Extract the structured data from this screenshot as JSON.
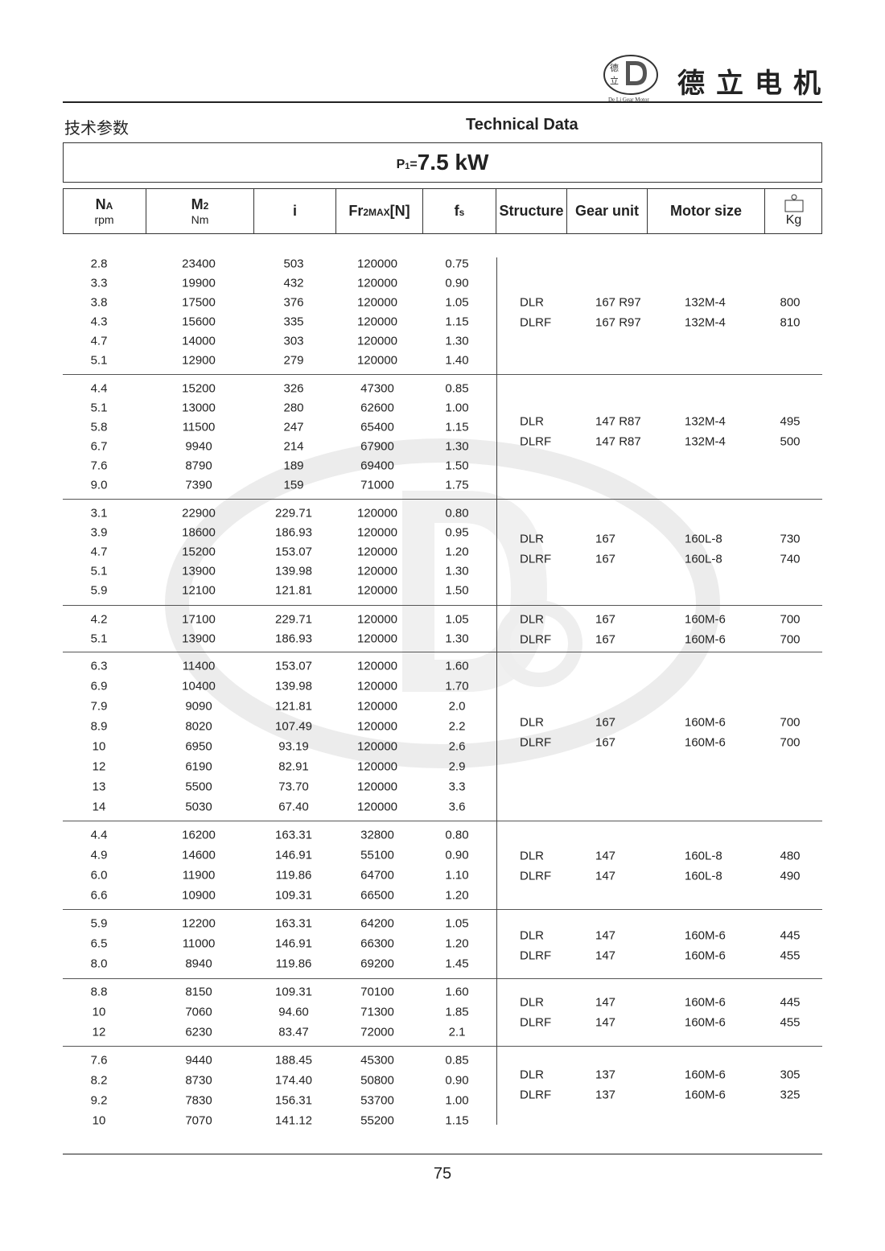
{
  "header": {
    "brand_cn": "德立电机",
    "logo_text": "De Li Gear Motor",
    "logo_chars": "德立"
  },
  "section": {
    "title_cn": "技术参数",
    "title_en": "Technical Data"
  },
  "power": {
    "label": "P",
    "sub": "1",
    "eq": "=",
    "value": "7.5 kW"
  },
  "columns": {
    "na": {
      "main": "N",
      "sub": "A",
      "unit": "rpm"
    },
    "m2": {
      "main": "M",
      "sub": "2",
      "unit": "Nm"
    },
    "i": "i",
    "fr": {
      "main": "Fr",
      "sub": "2MAX",
      "tail": "[N]"
    },
    "fs": {
      "main": "f",
      "sub": "s"
    },
    "structure": "Structure",
    "gear_unit": "Gear unit",
    "motor_size": "Motor size",
    "kg": "Kg"
  },
  "groups": [
    {
      "rows": [
        [
          "2.8",
          "23400",
          "503",
          "120000",
          "0.75"
        ],
        [
          "3.3",
          "19900",
          "432",
          "120000",
          "0.90"
        ],
        [
          "3.8",
          "17500",
          "376",
          "120000",
          "1.05"
        ],
        [
          "4.3",
          "15600",
          "335",
          "120000",
          "1.15"
        ],
        [
          "4.7",
          "14000",
          "303",
          "120000",
          "1.30"
        ],
        [
          "5.1",
          "12900",
          "279",
          "120000",
          "1.40"
        ]
      ],
      "variants": [
        [
          "DLR",
          "167 R97",
          "132M-4",
          "800"
        ],
        [
          "DLRF",
          "167 R97",
          "132M-4",
          "810"
        ]
      ]
    },
    {
      "rows": [
        [
          "4.4",
          "15200",
          "326",
          "47300",
          "0.85"
        ],
        [
          "5.1",
          "13000",
          "280",
          "62600",
          "1.00"
        ],
        [
          "5.8",
          "11500",
          "247",
          "65400",
          "1.15"
        ],
        [
          "6.7",
          "9940",
          "214",
          "67900",
          "1.30"
        ],
        [
          "7.6",
          "8790",
          "189",
          "69400",
          "1.50"
        ],
        [
          "9.0",
          "7390",
          "159",
          "71000",
          "1.75"
        ]
      ],
      "variants": [
        [
          "DLR",
          "147 R87",
          "132M-4",
          "495"
        ],
        [
          "DLRF",
          "147 R87",
          "132M-4",
          "500"
        ]
      ]
    },
    {
      "rows": [
        [
          "3.1",
          "22900",
          "229.71",
          "120000",
          "0.80"
        ],
        [
          "3.9",
          "18600",
          "186.93",
          "120000",
          "0.95"
        ],
        [
          "4.7",
          "15200",
          "153.07",
          "120000",
          "1.20"
        ],
        [
          "5.1",
          "13900",
          "139.98",
          "120000",
          "1.30"
        ],
        [
          "5.9",
          "12100",
          "121.81",
          "120000",
          "1.50"
        ]
      ],
      "variants": [
        [
          "DLR",
          "167",
          "160L-8",
          "730"
        ],
        [
          "DLRF",
          "167",
          "160L-8",
          "740"
        ]
      ]
    },
    {
      "rows": [
        [
          "4.2",
          "17100",
          "229.71",
          "120000",
          "1.05"
        ],
        [
          "5.1",
          "13900",
          "186.93",
          "120000",
          "1.30"
        ]
      ],
      "variants": [
        [
          "DLR",
          "167",
          "160M-6",
          "700"
        ],
        [
          "DLRF",
          "167",
          "160M-6",
          "700"
        ]
      ]
    },
    {
      "rows": [
        [
          "6.3",
          "11400",
          "153.07",
          "120000",
          "1.60"
        ],
        [
          "6.9",
          "10400",
          "139.98",
          "120000",
          "1.70"
        ],
        [
          "7.9",
          "9090",
          "121.81",
          "120000",
          "2.0"
        ],
        [
          "8.9",
          "8020",
          "107.49",
          "120000",
          "2.2"
        ],
        [
          "10",
          "6950",
          "93.19",
          "120000",
          "2.6"
        ],
        [
          "12",
          "6190",
          "82.91",
          "120000",
          "2.9"
        ],
        [
          "13",
          "5500",
          "73.70",
          "120000",
          "3.3"
        ],
        [
          "14",
          "5030",
          "67.40",
          "120000",
          "3.6"
        ]
      ],
      "variants": [
        [
          "DLR",
          "167",
          "160M-6",
          "700"
        ],
        [
          "DLRF",
          "167",
          "160M-6",
          "700"
        ]
      ]
    },
    {
      "rows": [
        [
          "4.4",
          "16200",
          "163.31",
          "32800",
          "0.80"
        ],
        [
          "4.9",
          "14600",
          "146.91",
          "55100",
          "0.90"
        ],
        [
          "6.0",
          "11900",
          "119.86",
          "64700",
          "1.10"
        ],
        [
          "6.6",
          "10900",
          "109.31",
          "66500",
          "1.20"
        ]
      ],
      "variants": [
        [
          "DLR",
          "147",
          "160L-8",
          "480"
        ],
        [
          "DLRF",
          "147",
          "160L-8",
          "490"
        ]
      ]
    },
    {
      "rows": [
        [
          "5.9",
          "12200",
          "163.31",
          "64200",
          "1.05"
        ],
        [
          "6.5",
          "11000",
          "146.91",
          "66300",
          "1.20"
        ],
        [
          "8.0",
          "8940",
          "119.86",
          "69200",
          "1.45"
        ]
      ],
      "variants": [
        [
          "DLR",
          "147",
          "160M-6",
          "445"
        ],
        [
          "DLRF",
          "147",
          "160M-6",
          "455"
        ]
      ]
    },
    {
      "rows": [
        [
          "8.8",
          "8150",
          "109.31",
          "70100",
          "1.60"
        ],
        [
          "10",
          "7060",
          "94.60",
          "71300",
          "1.85"
        ],
        [
          "12",
          "6230",
          "83.47",
          "72000",
          "2.1"
        ]
      ],
      "variants": [
        [
          "DLR",
          "147",
          "160M-6",
          "445"
        ],
        [
          "DLRF",
          "147",
          "160M-6",
          "455"
        ]
      ]
    },
    {
      "rows": [
        [
          "7.6",
          "9440",
          "188.45",
          "45300",
          "0.85"
        ],
        [
          "8.2",
          "8730",
          "174.40",
          "50800",
          "0.90"
        ],
        [
          "9.2",
          "7830",
          "156.31",
          "53700",
          "1.00"
        ],
        [
          "10",
          "7070",
          "141.12",
          "55200",
          "1.15"
        ]
      ],
      "variants": [
        [
          "DLR",
          "137",
          "160M-6",
          "305"
        ],
        [
          "DLRF",
          "137",
          "160M-6",
          "325"
        ]
      ]
    }
  ],
  "footer": {
    "page_number": "75"
  }
}
